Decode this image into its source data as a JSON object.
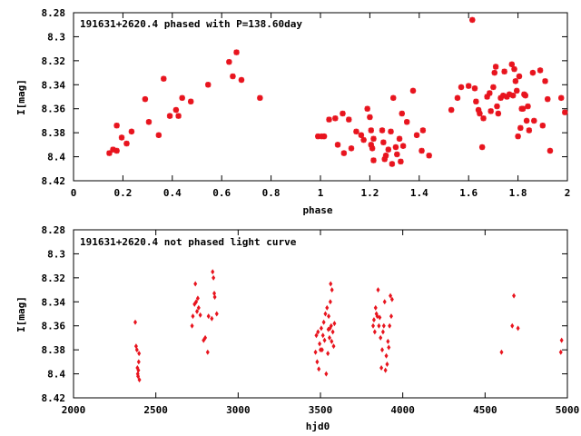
{
  "chart_data": [
    {
      "type": "scatter",
      "title": "191631+2620.4 phased with P=138.60day",
      "xlabel": "phase",
      "ylabel": "I[mag]",
      "xlim": [
        0,
        2
      ],
      "ylim": [
        8.28,
        8.42
      ],
      "y_inverted": true,
      "xticks": [
        0,
        0.2,
        0.4,
        0.6,
        0.8,
        1,
        1.2,
        1.4,
        1.6,
        1.8,
        2
      ],
      "xtick_labels": [
        "0",
        "0.2",
        "0.4",
        "0.6",
        "0.8",
        "1",
        "1.2",
        "1.4",
        "1.6",
        "1.8",
        "2"
      ],
      "yticks": [
        8.28,
        8.3,
        8.32,
        8.34,
        8.36,
        8.38,
        8.4,
        8.42
      ],
      "ytick_labels": [
        "8.28",
        "8.3",
        "8.32",
        "8.34",
        "8.36",
        "8.38",
        "8.4",
        "8.42"
      ],
      "marker": "star",
      "color": "#e8141e",
      "grid": false,
      "points": [
        [
          0.145,
          8.397
        ],
        [
          0.16,
          8.394
        ],
        [
          0.175,
          8.395
        ],
        [
          0.175,
          8.374
        ],
        [
          0.195,
          8.384
        ],
        [
          0.215,
          8.389
        ],
        [
          0.235,
          8.379
        ],
        [
          0.29,
          8.352
        ],
        [
          0.305,
          8.371
        ],
        [
          0.345,
          8.382
        ],
        [
          0.365,
          8.335
        ],
        [
          0.39,
          8.366
        ],
        [
          0.415,
          8.361
        ],
        [
          0.425,
          8.366
        ],
        [
          0.44,
          8.351
        ],
        [
          0.475,
          8.354
        ],
        [
          0.545,
          8.34
        ],
        [
          0.63,
          8.321
        ],
        [
          0.645,
          8.333
        ],
        [
          0.66,
          8.313
        ],
        [
          0.68,
          8.336
        ],
        [
          0.755,
          8.351
        ],
        [
          0.99,
          8.383
        ],
        [
          1.005,
          8.383
        ],
        [
          1.015,
          8.383
        ],
        [
          1.035,
          8.369
        ],
        [
          1.06,
          8.368
        ],
        [
          1.07,
          8.39
        ],
        [
          1.09,
          8.364
        ],
        [
          1.095,
          8.397
        ],
        [
          1.115,
          8.369
        ],
        [
          1.125,
          8.393
        ],
        [
          1.145,
          8.379
        ],
        [
          1.165,
          8.382
        ],
        [
          1.175,
          8.386
        ],
        [
          1.19,
          8.36
        ],
        [
          1.2,
          8.367
        ],
        [
          1.205,
          8.378
        ],
        [
          1.205,
          8.39
        ],
        [
          1.21,
          8.393
        ],
        [
          1.215,
          8.385
        ],
        [
          1.215,
          8.403
        ],
        [
          1.25,
          8.378
        ],
        [
          1.255,
          8.388
        ],
        [
          1.26,
          8.402
        ],
        [
          1.265,
          8.399
        ],
        [
          1.275,
          8.394
        ],
        [
          1.285,
          8.379
        ],
        [
          1.29,
          8.406
        ],
        [
          1.295,
          8.351
        ],
        [
          1.305,
          8.392
        ],
        [
          1.31,
          8.398
        ],
        [
          1.32,
          8.385
        ],
        [
          1.325,
          8.404
        ],
        [
          1.33,
          8.364
        ],
        [
          1.335,
          8.391
        ],
        [
          1.35,
          8.371
        ],
        [
          1.375,
          8.345
        ],
        [
          1.39,
          8.382
        ],
        [
          1.41,
          8.395
        ],
        [
          1.415,
          8.378
        ],
        [
          1.44,
          8.399
        ],
        [
          1.53,
          8.361
        ],
        [
          1.555,
          8.351
        ],
        [
          1.57,
          8.342
        ],
        [
          1.6,
          8.341
        ],
        [
          1.615,
          8.286
        ],
        [
          1.625,
          8.343
        ],
        [
          1.63,
          8.354
        ],
        [
          1.64,
          8.361
        ],
        [
          1.645,
          8.364
        ],
        [
          1.655,
          8.392
        ],
        [
          1.66,
          8.368
        ],
        [
          1.675,
          8.35
        ],
        [
          1.685,
          8.347
        ],
        [
          1.69,
          8.362
        ],
        [
          1.7,
          8.342
        ],
        [
          1.705,
          8.33
        ],
        [
          1.71,
          8.325
        ],
        [
          1.715,
          8.358
        ],
        [
          1.72,
          8.364
        ],
        [
          1.73,
          8.351
        ],
        [
          1.74,
          8.349
        ],
        [
          1.745,
          8.329
        ],
        [
          1.755,
          8.35
        ],
        [
          1.765,
          8.348
        ],
        [
          1.775,
          8.323
        ],
        [
          1.78,
          8.349
        ],
        [
          1.785,
          8.327
        ],
        [
          1.79,
          8.337
        ],
        [
          1.795,
          8.345
        ],
        [
          1.8,
          8.383
        ],
        [
          1.805,
          8.333
        ],
        [
          1.81,
          8.376
        ],
        [
          1.815,
          8.36
        ],
        [
          1.82,
          8.36
        ],
        [
          1.825,
          8.348
        ],
        [
          1.83,
          8.349
        ],
        [
          1.835,
          8.37
        ],
        [
          1.84,
          8.358
        ],
        [
          1.845,
          8.378
        ],
        [
          1.86,
          8.33
        ],
        [
          1.865,
          8.37
        ],
        [
          1.89,
          8.328
        ],
        [
          1.9,
          8.374
        ],
        [
          1.91,
          8.337
        ],
        [
          1.92,
          8.352
        ],
        [
          1.93,
          8.395
        ],
        [
          1.975,
          8.351
        ],
        [
          1.99,
          8.363
        ]
      ]
    },
    {
      "type": "scatter",
      "title": "191631+2620.4 not phased light curve",
      "xlabel": "hjd0",
      "ylabel": "I[mag]",
      "xlim": [
        2000,
        5000
      ],
      "ylim": [
        8.28,
        8.42
      ],
      "y_inverted": true,
      "xticks": [
        2000,
        2500,
        3000,
        3500,
        4000,
        4500,
        5000
      ],
      "xtick_labels": [
        "2000",
        "2500",
        "3000",
        "3500",
        "4000",
        "4500",
        "5000"
      ],
      "yticks": [
        8.28,
        8.3,
        8.32,
        8.34,
        8.36,
        8.38,
        8.4,
        8.42
      ],
      "ytick_labels": [
        "8.28",
        "8.3",
        "8.32",
        "8.34",
        "8.36",
        "8.38",
        "8.4",
        "8.42"
      ],
      "marker": "diamond",
      "color": "#e8141e",
      "grid": false,
      "points": [
        [
          2375,
          8.357
        ],
        [
          2380,
          8.377
        ],
        [
          2385,
          8.38
        ],
        [
          2388,
          8.395
        ],
        [
          2390,
          8.4
        ],
        [
          2392,
          8.402
        ],
        [
          2394,
          8.397
        ],
        [
          2396,
          8.39
        ],
        [
          2398,
          8.383
        ],
        [
          2400,
          8.405
        ],
        [
          2720,
          8.36
        ],
        [
          2725,
          8.352
        ],
        [
          2735,
          8.342
        ],
        [
          2740,
          8.325
        ],
        [
          2745,
          8.34
        ],
        [
          2750,
          8.348
        ],
        [
          2755,
          8.337
        ],
        [
          2760,
          8.345
        ],
        [
          2770,
          8.351
        ],
        [
          2790,
          8.372
        ],
        [
          2800,
          8.37
        ],
        [
          2815,
          8.382
        ],
        [
          2820,
          8.352
        ],
        [
          2840,
          8.354
        ],
        [
          2845,
          8.315
        ],
        [
          2850,
          8.32
        ],
        [
          2855,
          8.333
        ],
        [
          2858,
          8.336
        ],
        [
          2870,
          8.35
        ],
        [
          3470,
          8.382
        ],
        [
          3475,
          8.368
        ],
        [
          3480,
          8.39
        ],
        [
          3485,
          8.365
        ],
        [
          3490,
          8.396
        ],
        [
          3495,
          8.375
        ],
        [
          3500,
          8.38
        ],
        [
          3505,
          8.362
        ],
        [
          3510,
          8.38
        ],
        [
          3515,
          8.368
        ],
        [
          3520,
          8.357
        ],
        [
          3525,
          8.372
        ],
        [
          3530,
          8.35
        ],
        [
          3535,
          8.4
        ],
        [
          3540,
          8.345
        ],
        [
          3545,
          8.383
        ],
        [
          3548,
          8.363
        ],
        [
          3550,
          8.352
        ],
        [
          3555,
          8.37
        ],
        [
          3558,
          8.362
        ],
        [
          3560,
          8.34
        ],
        [
          3562,
          8.325
        ],
        [
          3565,
          8.36
        ],
        [
          3568,
          8.373
        ],
        [
          3570,
          8.33
        ],
        [
          3575,
          8.365
        ],
        [
          3580,
          8.377
        ],
        [
          3585,
          8.358
        ],
        [
          3820,
          8.36
        ],
        [
          3825,
          8.355
        ],
        [
          3830,
          8.365
        ],
        [
          3835,
          8.345
        ],
        [
          3840,
          8.35
        ],
        [
          3845,
          8.352
        ],
        [
          3850,
          8.33
        ],
        [
          3855,
          8.36
        ],
        [
          3860,
          8.353
        ],
        [
          3865,
          8.37
        ],
        [
          3870,
          8.395
        ],
        [
          3875,
          8.38
        ],
        [
          3880,
          8.365
        ],
        [
          3885,
          8.36
        ],
        [
          3890,
          8.34
        ],
        [
          3895,
          8.397
        ],
        [
          3900,
          8.385
        ],
        [
          3905,
          8.392
        ],
        [
          3910,
          8.373
        ],
        [
          3915,
          8.378
        ],
        [
          3920,
          8.36
        ],
        [
          3925,
          8.335
        ],
        [
          3930,
          8.352
        ],
        [
          3935,
          8.338
        ],
        [
          4600,
          8.382
        ],
        [
          4665,
          8.36
        ],
        [
          4675,
          8.335
        ],
        [
          4700,
          8.362
        ],
        [
          4960,
          8.382
        ],
        [
          4965,
          8.372
        ]
      ]
    }
  ]
}
